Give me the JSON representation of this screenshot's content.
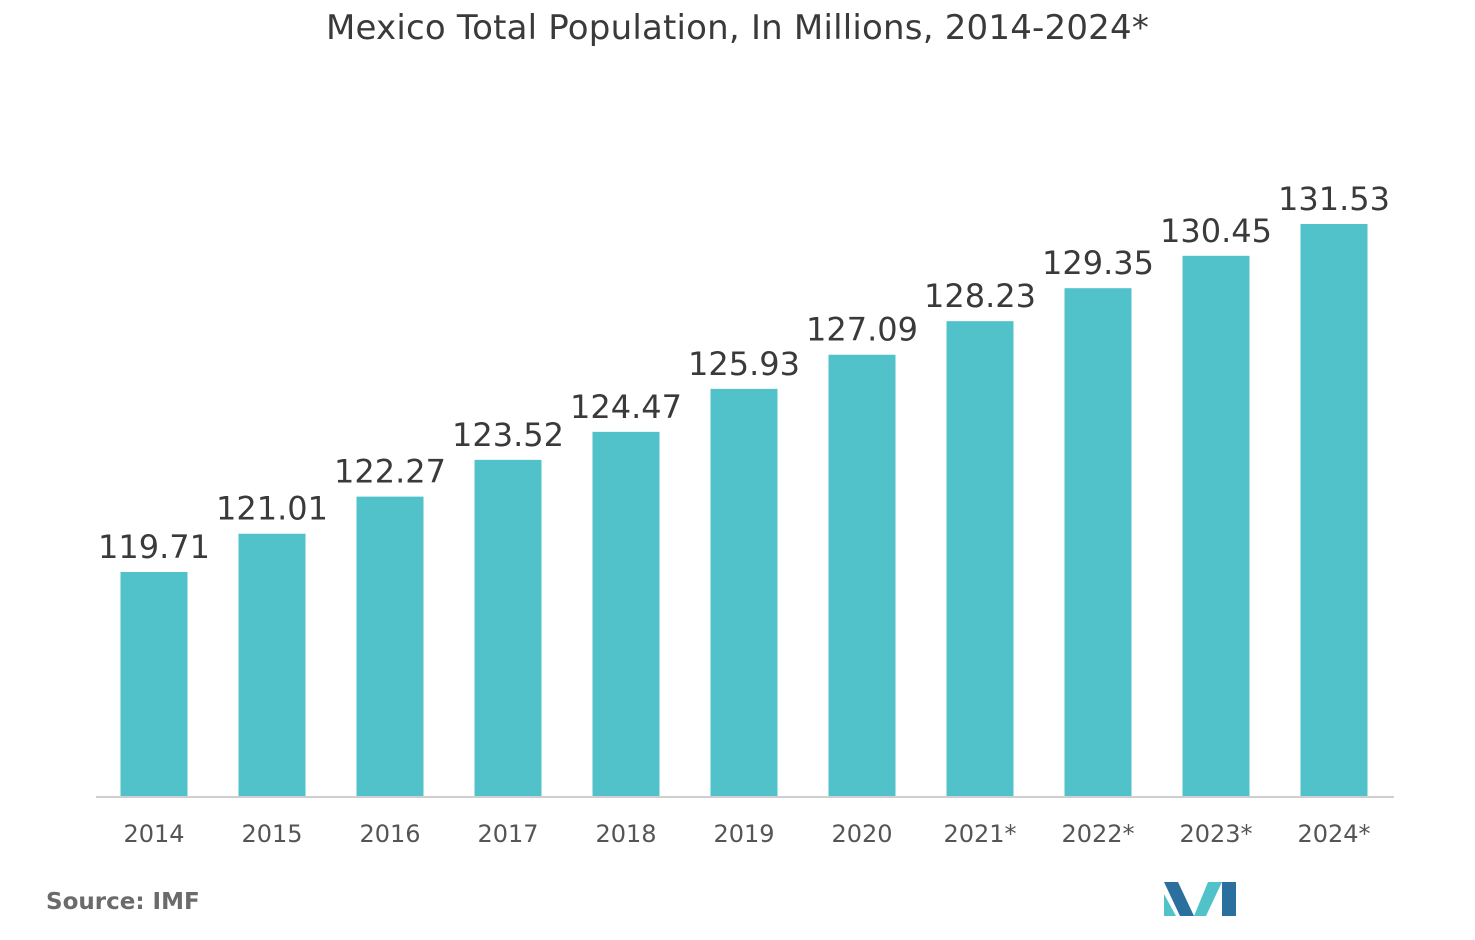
{
  "chart_data": {
    "type": "bar",
    "title": "Mexico Total Population, In Millions, 2014-2024*",
    "categories": [
      "2014",
      "2015",
      "2016",
      "2017",
      "2018",
      "2019",
      "2020",
      "2021*",
      "2022*",
      "2023*",
      "2024*"
    ],
    "values": [
      119.71,
      121.01,
      122.27,
      123.52,
      124.47,
      125.93,
      127.09,
      128.23,
      129.35,
      130.45,
      131.53
    ],
    "value_labels": [
      "119.71",
      "121.01",
      "122.27",
      "123.52",
      "124.47",
      "125.93",
      "127.09",
      "128.23",
      "129.35",
      "130.45",
      "131.53"
    ],
    "xlabel": "",
    "ylabel": "",
    "grid": false,
    "legend": "none"
  },
  "colors": {
    "bar": "#52c2ca",
    "axis": "#cfcfcf",
    "text": "#3a3a3a",
    "tick": "#555555",
    "logo_dark": "#2a6f9e",
    "logo_light": "#52c2ca"
  },
  "source": "Source: IMF",
  "logo_icon": "mordor-intelligence-logo-icon"
}
